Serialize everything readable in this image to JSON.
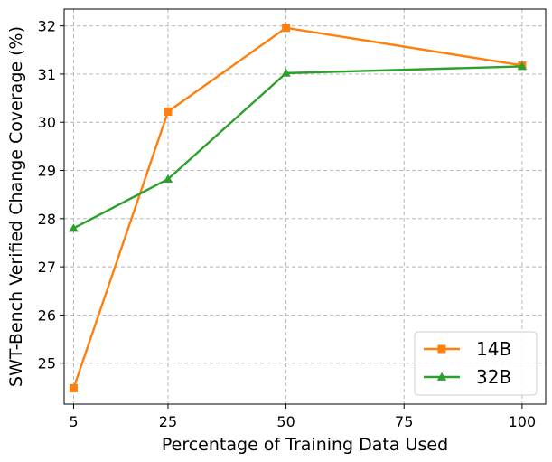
{
  "chart_data": {
    "type": "line",
    "title": "",
    "xlabel": "Percentage of Training Data Used",
    "ylabel": "SWT-Bench Verified Change Coverage (%)",
    "x": [
      5,
      25,
      50,
      75,
      100
    ],
    "x_ticks": [
      "5",
      "25",
      "50",
      "75",
      "100"
    ],
    "y_ticks": [
      "25",
      "26",
      "27",
      "28",
      "29",
      "30",
      "31",
      "32"
    ],
    "xlim": [
      3,
      105
    ],
    "ylim": [
      24.15,
      32.35
    ],
    "grid": true,
    "legend_position": "lower-right",
    "series": [
      {
        "name": "14B",
        "color": "#ff7f0e",
        "marker": "square",
        "points": [
          [
            5,
            24.48
          ],
          [
            25,
            30.22
          ],
          [
            50,
            31.96
          ],
          [
            100,
            31.18
          ]
        ]
      },
      {
        "name": "32B",
        "color": "#2ca02c",
        "marker": "triangle",
        "points": [
          [
            5,
            27.8
          ],
          [
            25,
            28.82
          ],
          [
            50,
            31.02
          ],
          [
            100,
            31.16
          ]
        ]
      }
    ]
  }
}
